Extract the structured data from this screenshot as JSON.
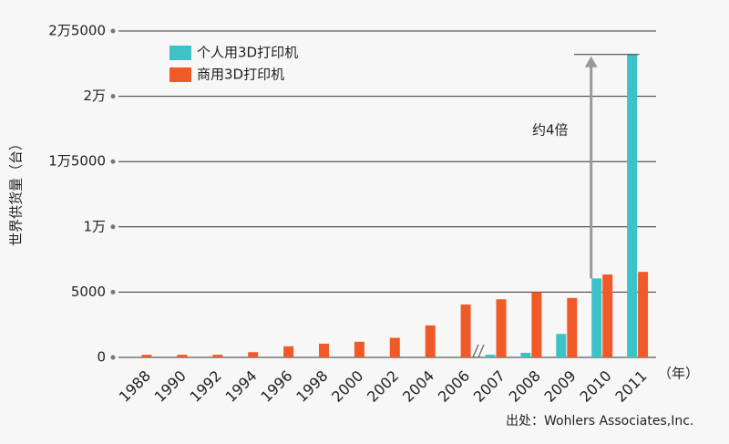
{
  "chart_data": {
    "type": "bar",
    "y_label": "世界供货量（台）",
    "x_unit": "（年）",
    "annotation": "约4倍",
    "source": "出处：Wohlers Associates,Inc.",
    "categories": [
      "1988",
      "1990",
      "1992",
      "1994",
      "1996",
      "1998",
      "2000",
      "2002",
      "2004",
      "2006",
      "2007",
      "2008",
      "2009",
      "2010",
      "2011"
    ],
    "series": [
      {
        "name": "个人用3D打印机",
        "color": "#3cc3c8",
        "values": [
          null,
          null,
          null,
          null,
          null,
          null,
          null,
          null,
          null,
          null,
          200,
          350,
          1800,
          6050,
          23200
        ]
      },
      {
        "name": "商用3D打印机",
        "color": "#f05a28",
        "values": [
          200,
          200,
          200,
          400,
          850,
          1050,
          1200,
          1500,
          2450,
          4050,
          4450,
          5000,
          4550,
          6350,
          6550
        ]
      }
    ],
    "ylim": [
      0,
      25000
    ],
    "yticks": [
      0,
      5000,
      {
        "value": 10000,
        "label": "1万"
      },
      {
        "value": 15000,
        "label": "1万5000"
      },
      {
        "value": 20000,
        "label": "2万"
      },
      {
        "value": 25000,
        "label": "2万5000"
      }
    ],
    "grid": true
  }
}
